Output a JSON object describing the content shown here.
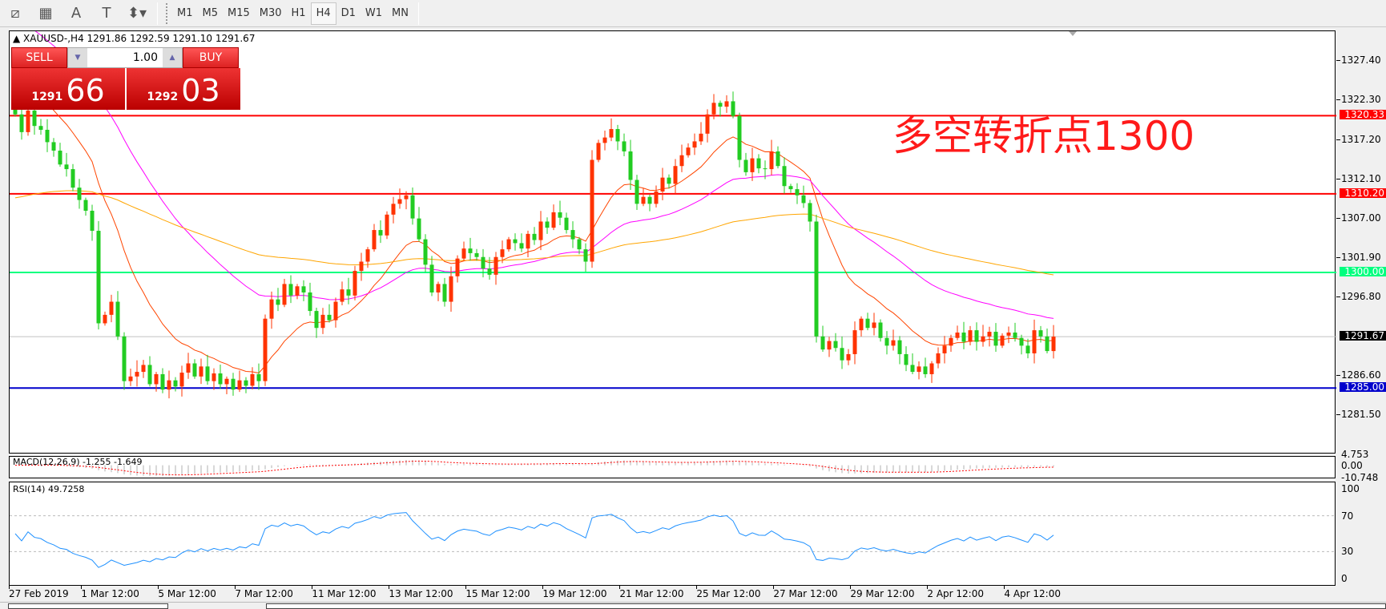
{
  "toolbar": {
    "icons": [
      "elliott-wave-icon",
      "fibonacci-icon",
      "text-icon",
      "text-label-icon",
      "arrows-icon"
    ],
    "icon_glyphs": [
      "⧄",
      "▦",
      "A",
      "T",
      "⬍▾"
    ],
    "timeframes": [
      "M1",
      "M5",
      "M15",
      "M30",
      "H1",
      "H4",
      "D1",
      "W1",
      "MN"
    ],
    "active_timeframe": "H4"
  },
  "chart": {
    "title": "XAUUSD-,H4  1291.86 1292.59 1291.10 1291.67",
    "annotation": "多空转折点1300",
    "price_ticks": [
      "1327.40",
      "1322.30",
      "1317.20",
      "1312.10",
      "1307.00",
      "1301.90",
      "1296.80",
      "1286.60",
      "1281.50"
    ],
    "levels": [
      {
        "price": 1320.33,
        "label": "1320.33",
        "color": "#ff0000"
      },
      {
        "price": 1310.2,
        "label": "1310.20",
        "color": "#ff0000"
      },
      {
        "price": 1300.0,
        "label": "1300.00",
        "color": "#00ff7f"
      },
      {
        "price": 1291.67,
        "label": "1291.67",
        "color": "#000000",
        "line_color": "#c0c0c0"
      },
      {
        "price": 1285.0,
        "label": "1285.00",
        "color": "#0000cc"
      }
    ],
    "colors": {
      "bull": "#ff3300",
      "bear": "#22cc22",
      "ma_fast": "#ff4500",
      "ma_mid": "#ff00ff",
      "ma_slow": "#ffa500"
    },
    "closes": [
      1320.5,
      1318.2,
      1321.0,
      1319.0,
      1318.5,
      1316.9,
      1315.8,
      1314.0,
      1313.4,
      1311.0,
      1309.4,
      1308.0,
      1305.4,
      1293.4,
      1294.5,
      1296.2,
      1291.7,
      1285.9,
      1286.5,
      1287.1,
      1288.0,
      1285.5,
      1286.8,
      1284.8,
      1286.0,
      1285.2,
      1287.0,
      1288.2,
      1286.5,
      1287.8,
      1285.9,
      1286.9,
      1285.5,
      1286.2,
      1284.8,
      1286.0,
      1285.3,
      1286.8,
      1285.9,
      1294.0,
      1296.5,
      1295.8,
      1298.5,
      1297.0,
      1298.2,
      1297.4,
      1295.0,
      1292.8,
      1294.5,
      1293.8,
      1296.2,
      1297.8,
      1297.0,
      1300.2,
      1301.4,
      1303.0,
      1305.5,
      1304.8,
      1307.5,
      1308.9,
      1309.5,
      1310.0,
      1307.0,
      1304.3,
      1301.0,
      1297.4,
      1298.5,
      1296.2,
      1299.5,
      1301.8,
      1303.1,
      1302.5,
      1302.0,
      1300.5,
      1299.7,
      1302.0,
      1303.0,
      1304.3,
      1303.8,
      1303.1,
      1305.0,
      1304.2,
      1306.6,
      1305.8,
      1307.8,
      1307.1,
      1305.5,
      1304.3,
      1303.0,
      1301.4,
      1314.6,
      1316.8,
      1317.5,
      1318.6,
      1317.0,
      1315.7,
      1312.0,
      1308.9,
      1309.8,
      1308.9,
      1310.5,
      1312.3,
      1311.5,
      1313.8,
      1315.2,
      1316.2,
      1317.0,
      1318.0,
      1320.5,
      1322.0,
      1321.5,
      1322.2,
      1320.3,
      1314.6,
      1313.0,
      1314.8,
      1313.5,
      1313.4,
      1315.7,
      1313.8,
      1311.2,
      1310.8,
      1310.0,
      1309.0,
      1306.6,
      1291.7,
      1290.0,
      1291.1,
      1290.2,
      1288.6,
      1289.4,
      1292.5,
      1294.0,
      1292.8,
      1293.5,
      1291.5,
      1290.5,
      1291.2,
      1289.4,
      1288.0,
      1287.1,
      1287.8,
      1286.8,
      1288.2,
      1289.5,
      1290.5,
      1291.5,
      1292.2,
      1291.0,
      1292.5,
      1291.0,
      1291.7,
      1292.3,
      1290.5,
      1291.8,
      1292.2,
      1291.5,
      1290.5,
      1289.5,
      1292.5,
      1291.7,
      1289.8,
      1291.67
    ]
  },
  "trade_panel": {
    "sell_label": "SELL",
    "buy_label": "BUY",
    "lot": "1.00",
    "sell_price_small": "1291",
    "sell_price_big": "66",
    "buy_price_small": "1292",
    "buy_price_big": "03"
  },
  "macd": {
    "title": "MACD(12,26,9) -1.255 -1.649",
    "ticks": [
      "4.753",
      "0.00",
      "-10.748"
    ]
  },
  "rsi": {
    "title": "RSI(14) 49.7258",
    "ticks": [
      "100",
      "70",
      "30",
      "0"
    ]
  },
  "time_axis": [
    "27 Feb 2019",
    "1 Mar 12:00",
    "5 Mar 12:00",
    "7 Mar 12:00",
    "11 Mar 12:00",
    "13 Mar 12:00",
    "15 Mar 12:00",
    "19 Mar 12:00",
    "21 Mar 12:00",
    "25 Mar 12:00",
    "27 Mar 12:00",
    "29 Mar 12:00",
    "2 Apr 12:00",
    "4 Apr 12:00"
  ]
}
